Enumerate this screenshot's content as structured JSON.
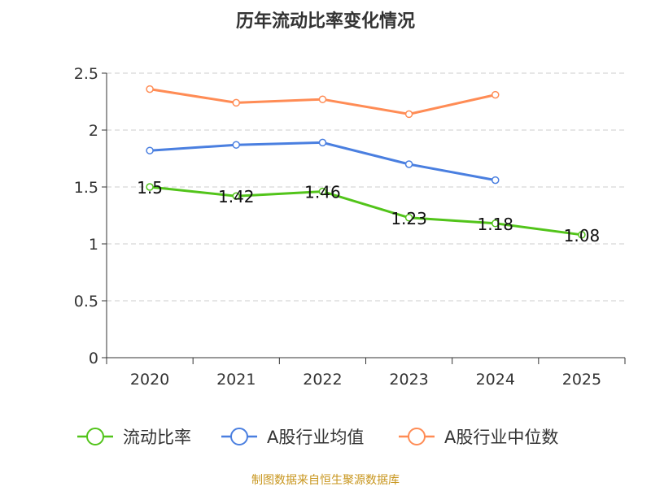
{
  "chart_data": {
    "type": "line",
    "title": "历年流动比率变化情况",
    "categories": [
      "2020",
      "2021",
      "2022",
      "2023",
      "2024",
      "2025"
    ],
    "ylim": [
      0,
      2.5
    ],
    "yticks": [
      "0",
      "0.5",
      "1",
      "1.5",
      "2",
      "2.5"
    ],
    "ytick_values": [
      0,
      0.5,
      1,
      1.5,
      2,
      2.5
    ],
    "grid": true,
    "legend_position": "bottom",
    "series": [
      {
        "name": "流动比率",
        "color": "#52c41a",
        "values": [
          1.5,
          1.42,
          1.46,
          1.23,
          1.18,
          1.08
        ],
        "labels": [
          "1.5",
          "1.42",
          "1.46",
          "1.23",
          "1.18",
          "1.08"
        ]
      },
      {
        "name": "A股行业均值",
        "color": "#4a7fe0",
        "values": [
          1.82,
          1.87,
          1.89,
          1.7,
          1.56,
          null
        ]
      },
      {
        "name": "A股行业中位数",
        "color": "#ff8c55",
        "values": [
          2.36,
          2.24,
          2.27,
          2.14,
          2.31,
          null
        ]
      }
    ],
    "source": "制图数据来自恒生聚源数据库"
  }
}
